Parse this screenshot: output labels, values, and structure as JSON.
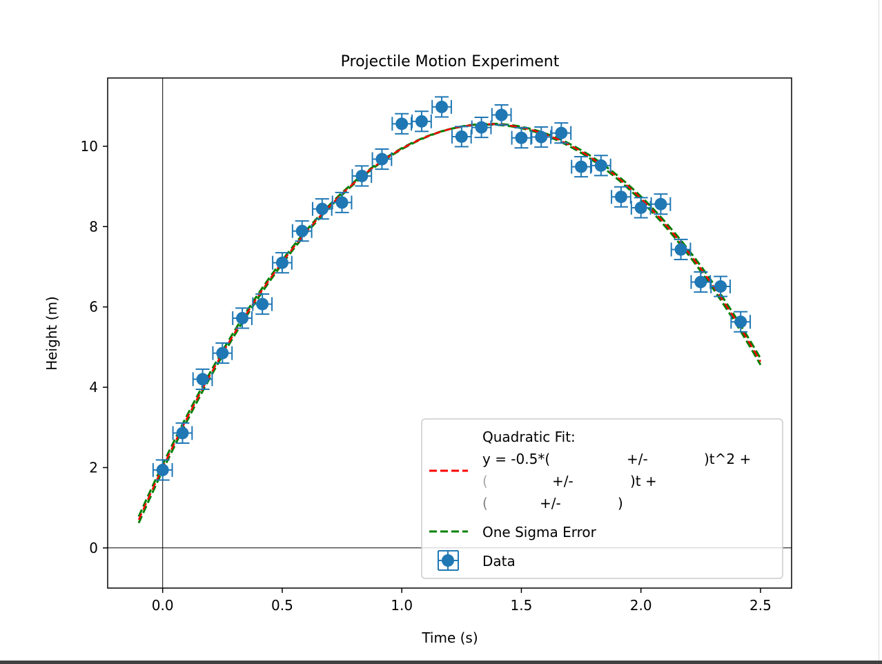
{
  "chart_data": {
    "type": "scatter",
    "title": "Projectile Motion Experiment",
    "xlabel": "Time (s)",
    "ylabel": "Height (m)",
    "xlim": [
      -0.23,
      2.63
    ],
    "ylim": [
      -1.0,
      11.7
    ],
    "xticks": [
      0.0,
      0.5,
      1.0,
      1.5,
      2.0,
      2.5
    ],
    "yticks": [
      0,
      2,
      4,
      6,
      8,
      10
    ],
    "xtick_labels": [
      "0.0",
      "0.5",
      "1.0",
      "1.5",
      "2.0",
      "2.5"
    ],
    "ytick_labels": [
      "0",
      "2",
      "4",
      "6",
      "8",
      "10"
    ],
    "axhline_y": 0,
    "axvline_x": 0,
    "legend_position": "lower right",
    "colors": {
      "data": "#1f77b4",
      "fit": "#ff0000",
      "sigma": "#008000"
    },
    "legend": {
      "fit_lines": [
        "Quadratic Fit:",
        "y = -0.5*(",
        "+/-",
        ")t^2 +",
        "(",
        "+/-",
        ")t +",
        "(",
        "+/-",
        ")"
      ],
      "sigma_label": "One Sigma Error",
      "data_label": "Data"
    },
    "series": [
      {
        "name": "Data",
        "kind": "errorbar",
        "x": [
          0.0,
          0.083,
          0.167,
          0.25,
          0.333,
          0.417,
          0.5,
          0.583,
          0.667,
          0.75,
          0.833,
          0.917,
          1.0,
          1.083,
          1.167,
          1.25,
          1.333,
          1.417,
          1.5,
          1.583,
          1.667,
          1.75,
          1.833,
          1.917,
          2.0,
          2.083,
          2.167,
          2.25,
          2.333,
          2.417
        ],
        "y": [
          1.94,
          2.86,
          4.2,
          4.85,
          5.72,
          6.07,
          7.1,
          7.89,
          8.44,
          8.6,
          9.26,
          9.68,
          10.56,
          10.62,
          10.98,
          10.24,
          10.47,
          10.78,
          10.21,
          10.23,
          10.33,
          9.49,
          9.52,
          8.74,
          8.47,
          8.56,
          7.43,
          6.62,
          6.51,
          5.63
        ],
        "yerr": 0.25,
        "xerr": 0.04
      },
      {
        "name": "Quadratic Fit",
        "kind": "line",
        "coefficients": {
          "a": -4.59,
          "b": 12.53,
          "c": 2.0
        },
        "x_range": [
          -0.1,
          2.5
        ]
      },
      {
        "name": "One Sigma Error",
        "kind": "band",
        "coefficients": {
          "a": -4.59,
          "b": 12.53,
          "c": 2.0
        },
        "delta_at_ends": 0.08,
        "x_range": [
          -0.1,
          2.5
        ]
      }
    ]
  }
}
